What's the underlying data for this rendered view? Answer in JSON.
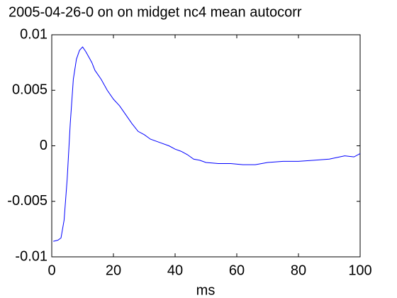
{
  "chart_data": {
    "type": "line",
    "title": "2005-04-26-0 on on midget nc4 mean autocorr",
    "x_label": "ms",
    "x": [
      0.5,
      2,
      3,
      4,
      5,
      6,
      7,
      8,
      9,
      10,
      11,
      12,
      13,
      14,
      16,
      18,
      20,
      22,
      24,
      26,
      28,
      30,
      32,
      35,
      38,
      40,
      42,
      44,
      46,
      48,
      50,
      54,
      58,
      62,
      66,
      70,
      75,
      80,
      85,
      90,
      95,
      98,
      100
    ],
    "values": [
      -0.0086,
      -0.0085,
      -0.0083,
      -0.0067,
      -0.003,
      0.002,
      0.006,
      0.0078,
      0.0086,
      0.0089,
      0.0085,
      0.008,
      0.0075,
      0.0068,
      0.006,
      0.005,
      0.0042,
      0.0036,
      0.0028,
      0.002,
      0.0013,
      0.001,
      0.0006,
      0.0003,
      0.0,
      -0.0003,
      -0.0005,
      -0.0008,
      -0.0012,
      -0.0013,
      -0.0015,
      -0.0016,
      -0.0016,
      -0.0017,
      -0.0017,
      -0.0015,
      -0.0014,
      -0.0014,
      -0.0013,
      -0.0012,
      -0.0009,
      -0.001,
      -0.0007
    ],
    "color": "#0000ff",
    "xlim": [
      0,
      100
    ],
    "xticks": [
      0,
      20,
      40,
      60,
      80,
      100
    ],
    "ylim": [
      -0.01,
      0.01
    ],
    "yticks": [
      -0.01,
      -0.005,
      0,
      0.005,
      0.01
    ]
  }
}
